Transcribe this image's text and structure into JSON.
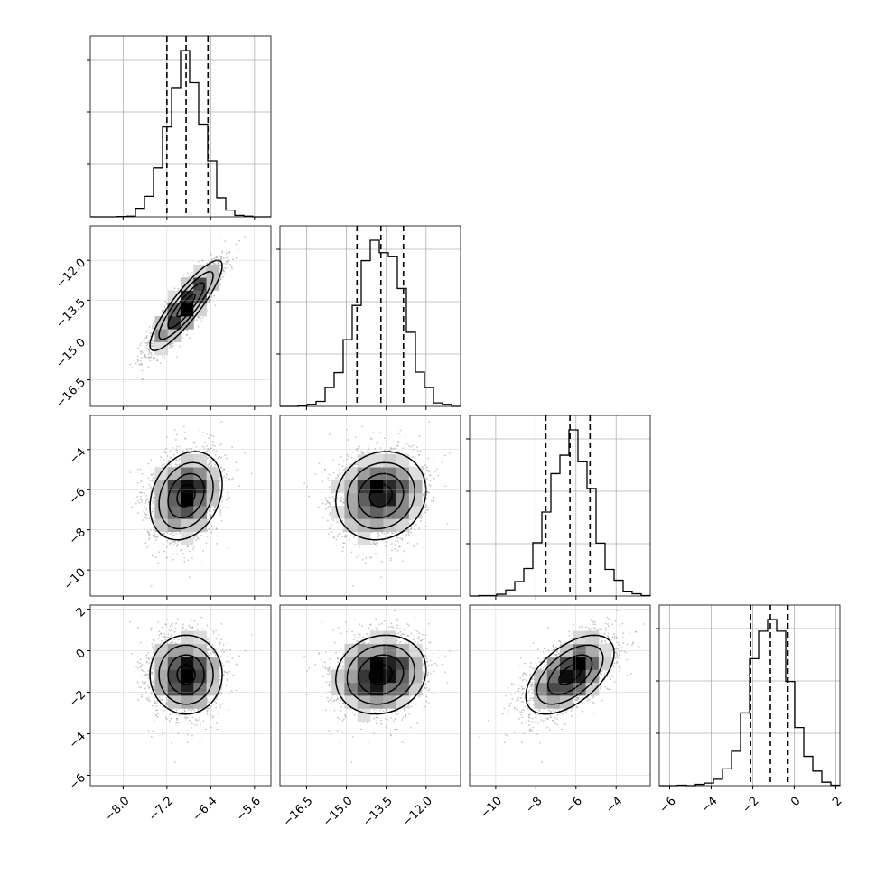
{
  "chart_data": {
    "type": "corner",
    "title": "",
    "params": [
      {
        "range": [
          -8.6,
          -5.3
        ],
        "mean": -6.85,
        "sd": 0.33,
        "q": [
          -7.2,
          -6.85,
          -6.45
        ],
        "ticks": [
          -8.0,
          -7.2,
          -6.4,
          -5.6
        ],
        "tick_labels": [
          "−8.0",
          "−7.2",
          "−6.4",
          "−5.6"
        ]
      },
      {
        "range": [
          -17.5,
          -10.7
        ],
        "mean": -13.7,
        "sd": 0.85,
        "q": [
          -14.6,
          -13.7,
          -12.85
        ],
        "ticks": [
          -16.5,
          -15.0,
          -13.5,
          -12.0
        ],
        "tick_labels": [
          "−16.5",
          "−15.0",
          "−13.5",
          "−12.0"
        ]
      },
      {
        "range": [
          -11.3,
          -2.3
        ],
        "mean": -6.3,
        "sd": 1.1,
        "q": [
          -7.5,
          -6.3,
          -5.3
        ],
        "ticks": [
          -10,
          -8,
          -6,
          -4
        ],
        "tick_labels": [
          "−10",
          "−8",
          "−6",
          "−4"
        ]
      },
      {
        "range": [
          -6.5,
          2.2
        ],
        "mean": -1.15,
        "sd": 0.95,
        "q": [
          -2.1,
          -1.15,
          -0.3
        ],
        "ticks": [
          -6,
          -4,
          -2,
          0,
          2
        ],
        "tick_labels": [
          "−6",
          "−4",
          "−2",
          "0",
          "2"
        ]
      }
    ],
    "correlations": [
      [
        1.0,
        0.88,
        0.25,
        0.0
      ],
      [
        0.88,
        1.0,
        0.12,
        0.12
      ],
      [
        0.25,
        0.12,
        1.0,
        0.55
      ],
      [
        0.0,
        0.12,
        0.55,
        1.0
      ]
    ],
    "quantile_lines": "dashed",
    "grid": true,
    "scatter_color": "#999999",
    "line_color": "#000000"
  }
}
